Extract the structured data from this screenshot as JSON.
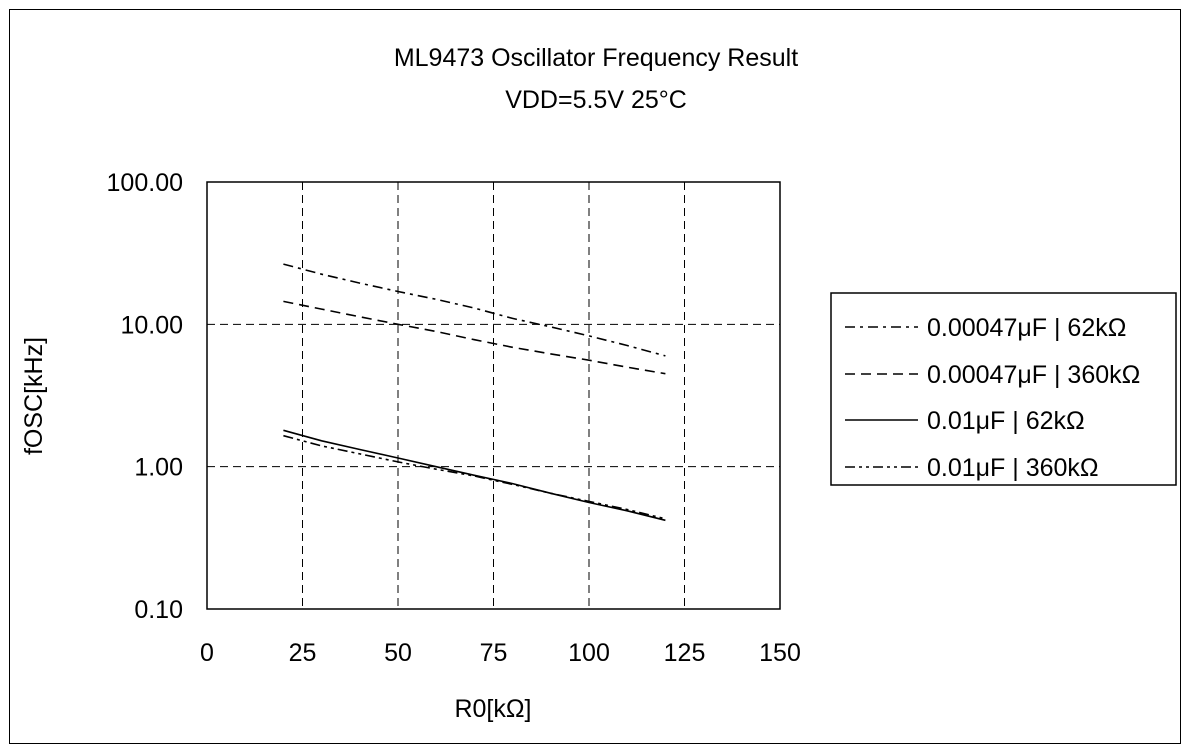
{
  "chart_data": {
    "type": "line",
    "title": "ML9473 Oscillator Frequency Result",
    "subtitle": "VDD=5.5V 25°C",
    "xlabel": "R0[kΩ]",
    "ylabel": "fOSC[kHz]",
    "xlim": [
      0,
      150
    ],
    "ylim": [
      0.1,
      100
    ],
    "yscale": "log",
    "grid": true,
    "legend_position": "right",
    "x_ticks": [
      "0",
      "25",
      "50",
      "75",
      "100",
      "125",
      "150"
    ],
    "y_ticks": [
      "0.10",
      "1.00",
      "10.00",
      "100.00"
    ],
    "series": [
      {
        "name": "0.00047μF | 62kΩ",
        "style": "dashdot",
        "x": [
          20,
          30,
          40,
          50,
          60,
          70,
          80,
          90,
          100,
          110,
          120
        ],
        "values": [
          26.5,
          22.5,
          19.5,
          17.0,
          15.0,
          13.0,
          11.0,
          9.6,
          8.3,
          7.1,
          6.0
        ]
      },
      {
        "name": "0.00047μF | 360kΩ",
        "style": "dashed",
        "x": [
          20,
          30,
          40,
          50,
          60,
          70,
          80,
          90,
          100,
          110,
          120
        ],
        "values": [
          14.5,
          12.8,
          11.3,
          10.0,
          8.9,
          7.8,
          6.9,
          6.2,
          5.6,
          5.0,
          4.5
        ]
      },
      {
        "name": "0.01μF | 62kΩ",
        "style": "solid",
        "x": [
          20,
          30,
          40,
          50,
          60,
          70,
          80,
          90,
          100,
          110,
          120
        ],
        "values": [
          1.8,
          1.52,
          1.32,
          1.15,
          1.0,
          0.87,
          0.76,
          0.65,
          0.56,
          0.49,
          0.42
        ]
      },
      {
        "name": "0.01μF | 360kΩ",
        "style": "dashdotdot",
        "x": [
          20,
          30,
          40,
          50,
          60,
          70,
          80,
          90,
          100,
          110,
          120
        ],
        "values": [
          1.65,
          1.4,
          1.23,
          1.08,
          0.96,
          0.86,
          0.75,
          0.65,
          0.57,
          0.5,
          0.43
        ]
      }
    ]
  }
}
